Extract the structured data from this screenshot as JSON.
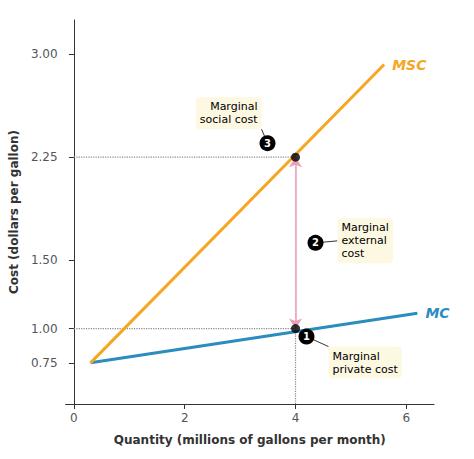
{
  "chart_data": {
    "type": "line",
    "xlabel": "Quantity (millions of gallons per month)",
    "ylabel": "Cost (dollars per gallon)",
    "xlim": [
      -0.15,
      6.5
    ],
    "ylim": [
      0.45,
      3.25
    ],
    "xticks": [
      0,
      2,
      4,
      6
    ],
    "yticks": [
      0.75,
      {
        "value": 1.0,
        "label": "1.00"
      },
      {
        "value": 1.5,
        "label": "1.50"
      },
      2.25,
      {
        "value": 3.0,
        "label": "3.00"
      }
    ],
    "grid": false,
    "series": [
      {
        "name": "MC",
        "color": "#2b8cbe",
        "line_style": "solid",
        "x": [
          0.3,
          6.2
        ],
        "values": [
          0.75,
          1.1125
        ]
      },
      {
        "name": "MSC",
        "color": "#f5a623",
        "line_style": "solid",
        "x": [
          0.3,
          5.6
        ],
        "values": [
          0.75,
          2.925
        ]
      },
      {
        "color": "#888888",
        "line_style": "dotted",
        "x": [
          0,
          4.0
        ],
        "values": [
          2.25,
          2.25
        ]
      },
      {
        "color": "#888888",
        "line_style": "dotted",
        "x": [
          0,
          4.0
        ],
        "values": [
          1.0,
          1.0
        ]
      },
      {
        "color": "#888888",
        "line_style": "dotted",
        "x": [
          4.0,
          4.0
        ],
        "values": [
          0.45,
          1.0
        ]
      },
      {
        "color": "#e8a0b4",
        "line_style": "dotted",
        "marker": "arrow",
        "x": [
          4.0,
          4.0
        ],
        "values": [
          1.0,
          2.25
        ]
      },
      {
        "type": "scatter",
        "color": "#000000",
        "marker": "circle",
        "x": [
          4.0,
          4.0
        ],
        "values": [
          1.0,
          2.25
        ]
      }
    ],
    "annotations": [
      {
        "number": 1,
        "text": "Marginal\nprivate cost",
        "color": "#fdf8e1"
      },
      {
        "number": 2,
        "text": "Marginal\nexternal\ncost",
        "color": "#fdf8e1"
      },
      {
        "number": 3,
        "text": "Marginal\nsocial cost",
        "color": "#fdf8e1"
      }
    ]
  }
}
